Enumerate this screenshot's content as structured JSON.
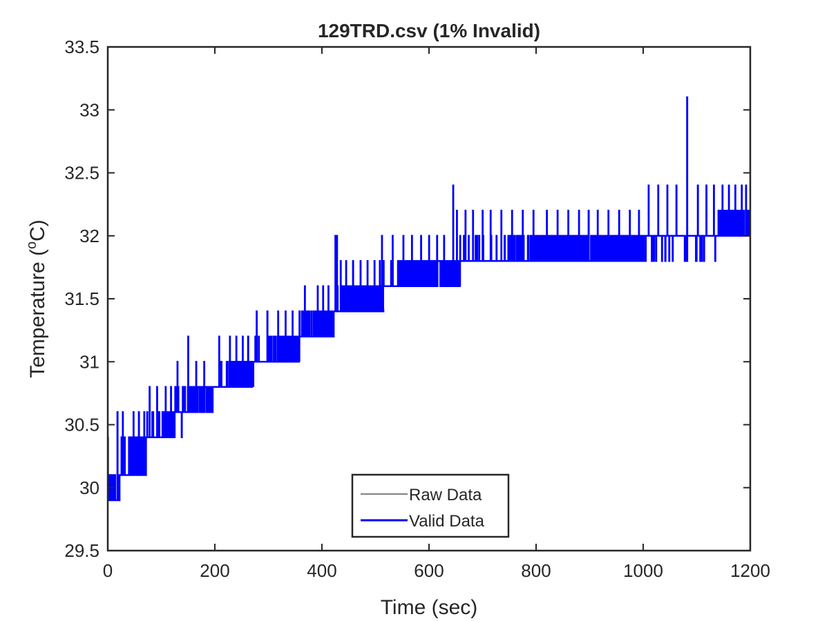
{
  "chart_data": {
    "type": "line",
    "title": "129TRD.csv (1% Invalid)",
    "xlabel": "Time (sec)",
    "ylabel": {
      "base": "Temperature (",
      "sup": "o",
      "unit": "C)"
    },
    "xlim": [
      0,
      1200
    ],
    "ylim": [
      29.5,
      33.5
    ],
    "xticks": [
      0,
      200,
      400,
      600,
      800,
      1000,
      1200
    ],
    "yticks": [
      29.5,
      30,
      30.5,
      31,
      31.5,
      32,
      32.5,
      33,
      33.5
    ],
    "grid": false,
    "legend": {
      "placement": "bottom-center",
      "entries": [
        "Raw Data",
        "Valid Data"
      ]
    },
    "series": [
      {
        "name": "Raw Data",
        "color": "#000000",
        "segments": [
          {
            "x_start": 0,
            "x_end": 10,
            "base": 29.9,
            "alt": 30.1,
            "density": 1.0,
            "spikes": [
              {
                "x": 1,
                "y": 30.4
              }
            ]
          }
        ]
      },
      {
        "name": "Valid Data",
        "color": "#0000ff",
        "segments": [
          {
            "x_start": 0,
            "x_end": 12,
            "base": 29.9,
            "alt": 30.1,
            "density": 0.6,
            "spikes": []
          },
          {
            "x_start": 12,
            "x_end": 22,
            "base": 29.9,
            "alt": 30.1,
            "density": 0.4,
            "spikes": [
              {
                "x": 18,
                "y": 30.6
              }
            ]
          },
          {
            "x_start": 22,
            "x_end": 40,
            "base": 30.1,
            "alt": 30.4,
            "density": 0.2,
            "spikes": [
              {
                "x": 28,
                "y": 30.6
              }
            ]
          },
          {
            "x_start": 40,
            "x_end": 72,
            "base": 30.1,
            "alt": 30.4,
            "density": 1.0,
            "spikes": [
              {
                "x": 48,
                "y": 30.6
              },
              {
                "x": 58,
                "y": 30.6
              },
              {
                "x": 68,
                "y": 30.6
              }
            ]
          },
          {
            "x_start": 72,
            "x_end": 100,
            "base": 30.4,
            "alt": 30.6,
            "density": 0.3,
            "spikes": [
              {
                "x": 78,
                "y": 30.8
              },
              {
                "x": 92,
                "y": 30.8
              }
            ]
          },
          {
            "x_start": 100,
            "x_end": 125,
            "base": 30.4,
            "alt": 30.6,
            "density": 0.9,
            "spikes": [
              {
                "x": 108,
                "y": 30.8
              },
              {
                "x": 118,
                "y": 30.8
              }
            ]
          },
          {
            "x_start": 125,
            "x_end": 140,
            "base": 30.6,
            "alt": 30.8,
            "density": 0.3,
            "spikes": [
              {
                "x": 130,
                "y": 31.0
              },
              {
                "x": 138,
                "y": 30.4
              }
            ]
          },
          {
            "x_start": 140,
            "x_end": 196,
            "base": 30.6,
            "alt": 30.8,
            "density": 1.0,
            "spikes": [
              {
                "x": 150,
                "y": 31.2
              },
              {
                "x": 165,
                "y": 31.0
              },
              {
                "x": 180,
                "y": 31.0
              }
            ]
          },
          {
            "x_start": 196,
            "x_end": 222,
            "base": 30.8,
            "alt": 31.0,
            "density": 0.2,
            "spikes": [
              {
                "x": 208,
                "y": 31.2
              }
            ]
          },
          {
            "x_start": 222,
            "x_end": 272,
            "base": 30.8,
            "alt": 31.0,
            "density": 0.9,
            "spikes": [
              {
                "x": 228,
                "y": 31.2
              },
              {
                "x": 240,
                "y": 31.2
              },
              {
                "x": 252,
                "y": 31.2
              },
              {
                "x": 262,
                "y": 31.2
              }
            ]
          },
          {
            "x_start": 272,
            "x_end": 310,
            "base": 31.0,
            "alt": 31.2,
            "density": 0.2,
            "spikes": [
              {
                "x": 278,
                "y": 31.4
              },
              {
                "x": 298,
                "y": 31.4
              }
            ]
          },
          {
            "x_start": 310,
            "x_end": 358,
            "base": 31.0,
            "alt": 31.2,
            "density": 1.0,
            "spikes": [
              {
                "x": 318,
                "y": 31.4
              },
              {
                "x": 332,
                "y": 31.4
              },
              {
                "x": 345,
                "y": 31.4
              }
            ]
          },
          {
            "x_start": 358,
            "x_end": 385,
            "base": 31.2,
            "alt": 31.4,
            "density": 0.2,
            "spikes": [
              {
                "x": 368,
                "y": 31.6
              }
            ]
          },
          {
            "x_start": 385,
            "x_end": 422,
            "base": 31.2,
            "alt": 31.4,
            "density": 0.9,
            "spikes": [
              {
                "x": 392,
                "y": 31.6
              },
              {
                "x": 402,
                "y": 31.6
              },
              {
                "x": 412,
                "y": 31.6
              }
            ]
          },
          {
            "x_start": 422,
            "x_end": 438,
            "base": 31.4,
            "alt": 31.6,
            "density": 0.3,
            "spikes": [
              {
                "x": 425,
                "y": 32.0
              },
              {
                "x": 428,
                "y": 32.0
              },
              {
                "x": 435,
                "y": 31.8
              }
            ]
          },
          {
            "x_start": 438,
            "x_end": 515,
            "base": 31.4,
            "alt": 31.6,
            "density": 1.0,
            "spikes": [
              {
                "x": 445,
                "y": 31.8
              },
              {
                "x": 458,
                "y": 31.8
              },
              {
                "x": 472,
                "y": 31.8
              },
              {
                "x": 485,
                "y": 31.8
              },
              {
                "x": 498,
                "y": 31.8
              },
              {
                "x": 508,
                "y": 31.8
              }
            ]
          },
          {
            "x_start": 515,
            "x_end": 545,
            "base": 31.6,
            "alt": 31.8,
            "density": 0.2,
            "spikes": [
              {
                "x": 512,
                "y": 32.0
              },
              {
                "x": 532,
                "y": 32.0
              }
            ]
          },
          {
            "x_start": 545,
            "x_end": 658,
            "base": 31.6,
            "alt": 31.8,
            "density": 1.0,
            "spikes": [
              {
                "x": 552,
                "y": 32.0
              },
              {
                "x": 568,
                "y": 32.0
              },
              {
                "x": 585,
                "y": 32.0
              },
              {
                "x": 600,
                "y": 32.0
              },
              {
                "x": 615,
                "y": 32.0
              },
              {
                "x": 628,
                "y": 32.0
              },
              {
                "x": 645,
                "y": 32.4
              },
              {
                "x": 652,
                "y": 32.2
              }
            ]
          },
          {
            "x_start": 658,
            "x_end": 740,
            "base": 31.8,
            "alt": 32.0,
            "density": 0.15,
            "spikes": [
              {
                "x": 668,
                "y": 32.2
              },
              {
                "x": 682,
                "y": 32.2
              },
              {
                "x": 700,
                "y": 32.2
              },
              {
                "x": 715,
                "y": 32.2
              },
              {
                "x": 735,
                "y": 32.2
              }
            ]
          },
          {
            "x_start": 740,
            "x_end": 800,
            "base": 31.8,
            "alt": 32.0,
            "density": 0.3,
            "spikes": [
              {
                "x": 755,
                "y": 32.2
              },
              {
                "x": 775,
                "y": 32.2
              },
              {
                "x": 795,
                "y": 32.2
              }
            ]
          },
          {
            "x_start": 800,
            "x_end": 1005,
            "base": 31.8,
            "alt": 32.0,
            "density": 0.9,
            "spikes": [
              {
                "x": 820,
                "y": 32.2
              },
              {
                "x": 840,
                "y": 32.2
              },
              {
                "x": 860,
                "y": 32.2
              },
              {
                "x": 880,
                "y": 32.2
              },
              {
                "x": 898,
                "y": 32.2
              },
              {
                "x": 915,
                "y": 32.2
              },
              {
                "x": 935,
                "y": 32.2
              },
              {
                "x": 955,
                "y": 32.2
              },
              {
                "x": 975,
                "y": 32.2
              },
              {
                "x": 992,
                "y": 32.2
              }
            ]
          },
          {
            "x_start": 1005,
            "x_end": 1140,
            "base": 32.0,
            "alt": 31.8,
            "density": 0.12,
            "spikes": [
              {
                "x": 1010,
                "y": 32.4
              },
              {
                "x": 1028,
                "y": 32.4
              },
              {
                "x": 1045,
                "y": 32.4
              },
              {
                "x": 1062,
                "y": 32.4
              },
              {
                "x": 1082,
                "y": 33.1
              },
              {
                "x": 1102,
                "y": 32.4
              },
              {
                "x": 1118,
                "y": 32.4
              },
              {
                "x": 1132,
                "y": 32.4
              }
            ]
          },
          {
            "x_start": 1140,
            "x_end": 1200,
            "base": 32.0,
            "alt": 32.2,
            "density": 0.9,
            "spikes": [
              {
                "x": 1148,
                "y": 32.4
              },
              {
                "x": 1160,
                "y": 32.4
              },
              {
                "x": 1172,
                "y": 32.4
              },
              {
                "x": 1184,
                "y": 32.4
              },
              {
                "x": 1192,
                "y": 32.4
              }
            ]
          }
        ]
      }
    ]
  }
}
